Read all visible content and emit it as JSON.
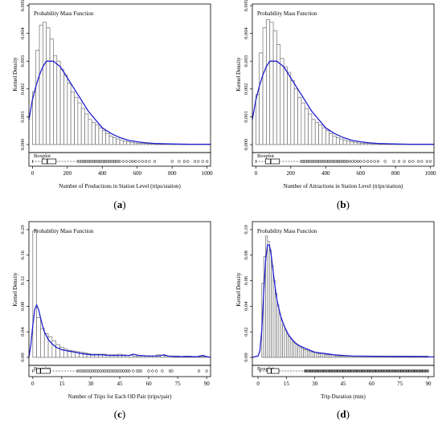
{
  "chart_data": [
    {
      "id": "a",
      "type": "bar",
      "caption_letter": "a",
      "legend_label": "Probability Mass Function",
      "boxplot_label": "Boxplot",
      "xlabel": "Number of Productions in Station Level (trips/station)",
      "ylabel": "Kernel Density",
      "xlim": [
        -20,
        1020
      ],
      "ylim": [
        0,
        0.005
      ],
      "xticks": [
        0,
        200,
        400,
        600,
        800,
        1000
      ],
      "yticks": [
        0.0,
        0.001,
        0.002,
        0.003,
        0.004,
        0.005
      ],
      "ytick_labels": [
        "0.000",
        "0.001",
        "0.002",
        "0.003",
        "0.004",
        "0.005"
      ],
      "bin_width": 20,
      "bin_start": 0,
      "histogram": [
        0.0019,
        0.0034,
        0.0043,
        0.0044,
        0.0042,
        0.0038,
        0.0032,
        0.003,
        0.0027,
        0.0025,
        0.0022,
        0.0019,
        0.0017,
        0.0015,
        0.0013,
        0.0011,
        0.0009,
        0.0008,
        0.0007,
        0.0006,
        0.0005,
        0.0004,
        0.0003,
        0.00025,
        0.0002,
        0.00015,
        0.00012,
        0.0001,
        8e-05,
        6e-05,
        5e-05,
        4e-05,
        4e-05,
        3e-05,
        3e-05,
        2e-05,
        2e-05,
        2e-05,
        1e-05,
        1e-05,
        1e-05,
        1e-05,
        1e-05,
        1e-05,
        1e-05,
        1e-05,
        1e-05,
        1e-05,
        1e-05,
        1e-05,
        1e-05
      ],
      "density_curve": {
        "x": [
          -20,
          0,
          20,
          40,
          60,
          80,
          100,
          120,
          140,
          160,
          180,
          200,
          240,
          280,
          320,
          360,
          400,
          450,
          500,
          550,
          600,
          650,
          700,
          800,
          900,
          1000,
          1020
        ],
        "y": [
          0.0009,
          0.0016,
          0.0021,
          0.0025,
          0.0028,
          0.003,
          0.003,
          0.003,
          0.0029,
          0.0028,
          0.0026,
          0.0024,
          0.002,
          0.0016,
          0.0012,
          0.0009,
          0.0006,
          0.0004,
          0.00025,
          0.00015,
          0.0001,
          6e-05,
          4e-05,
          2e-05,
          1e-05,
          1e-05,
          1e-05
        ]
      },
      "boxplot": {
        "min": 0,
        "q1": 55,
        "median": 85,
        "q3": 135,
        "whisker_hi": 260
      },
      "outliers": [
        270,
        280,
        290,
        300,
        310,
        320,
        330,
        340,
        350,
        360,
        370,
        380,
        390,
        400,
        410,
        420,
        430,
        440,
        450,
        460,
        470,
        480,
        490,
        500,
        520,
        540,
        560,
        575,
        590,
        610,
        630,
        650,
        670,
        700,
        800,
        840,
        870,
        890,
        930,
        950,
        975,
        1000
      ]
    },
    {
      "id": "b",
      "type": "bar",
      "caption_letter": "b",
      "legend_label": "Probability Mass Function",
      "boxplot_label": "Boxplot",
      "xlabel": "Number of Attractions in Station Level (trips/station)",
      "ylabel": "Kernel Density",
      "xlim": [
        -20,
        1020
      ],
      "ylim": [
        0,
        0.005
      ],
      "xticks": [
        0,
        200,
        400,
        600,
        800,
        1000
      ],
      "yticks": [
        0.0,
        0.001,
        0.002,
        0.003,
        0.004,
        0.005
      ],
      "ytick_labels": [
        "0.000",
        "0.001",
        "0.002",
        "0.003",
        "0.004",
        "0.005"
      ],
      "bin_width": 20,
      "bin_start": 0,
      "histogram": [
        0.0018,
        0.0033,
        0.0042,
        0.0045,
        0.0044,
        0.0041,
        0.0036,
        0.0031,
        0.0028,
        0.0026,
        0.0023,
        0.002,
        0.0017,
        0.0015,
        0.0013,
        0.0011,
        0.0009,
        0.0008,
        0.0007,
        0.0006,
        0.0005,
        0.0004,
        0.0003,
        0.00025,
        0.0002,
        0.00015,
        0.00012,
        0.0001,
        8e-05,
        6e-05,
        5e-05,
        4e-05,
        4e-05,
        3e-05,
        3e-05,
        2e-05,
        2e-05,
        2e-05,
        1e-05,
        1e-05,
        1e-05,
        1e-05,
        1e-05,
        1e-05,
        1e-05,
        1e-05,
        1e-05,
        1e-05,
        1e-05,
        1e-05,
        1e-05
      ],
      "density_curve": {
        "x": [
          -20,
          0,
          20,
          40,
          60,
          80,
          100,
          120,
          140,
          160,
          180,
          200,
          240,
          280,
          320,
          360,
          400,
          450,
          500,
          550,
          600,
          650,
          700,
          800,
          900,
          1000,
          1020
        ],
        "y": [
          0.0009,
          0.0016,
          0.0021,
          0.0025,
          0.0028,
          0.003,
          0.003,
          0.003,
          0.0029,
          0.0028,
          0.0026,
          0.0024,
          0.002,
          0.0016,
          0.0012,
          0.0009,
          0.0006,
          0.0004,
          0.00025,
          0.00015,
          0.0001,
          6e-05,
          4e-05,
          2e-05,
          1e-05,
          1e-05,
          1e-05
        ]
      },
      "boxplot": {
        "min": 0,
        "q1": 55,
        "median": 85,
        "q3": 135,
        "whisker_hi": 260
      },
      "outliers": [
        265,
        275,
        285,
        295,
        305,
        315,
        325,
        335,
        345,
        355,
        365,
        375,
        385,
        395,
        405,
        415,
        425,
        435,
        445,
        455,
        465,
        475,
        485,
        495,
        505,
        515,
        525,
        540,
        555,
        570,
        585,
        600,
        620,
        640,
        660,
        680,
        700,
        740,
        790,
        820,
        850,
        880,
        900,
        930,
        950,
        980,
        1000
      ]
    },
    {
      "id": "c",
      "type": "bar",
      "caption_letter": "c",
      "legend_label": "Probability Mass Function",
      "boxplot_label": "Boxplot",
      "xlabel": "Number of Trips for Each OD Pair (trips/pair)",
      "ylabel": "Kernel Density",
      "xlim": [
        -2,
        92
      ],
      "ylim": [
        0,
        0.21
      ],
      "xticks": [
        0,
        15,
        30,
        45,
        60,
        75,
        90
      ],
      "yticks": [
        0.0,
        0.04,
        0.08,
        0.12,
        0.16,
        0.2
      ],
      "ytick_labels": [
        "0.00",
        "0.04",
        "0.08",
        "0.12",
        "0.16",
        "0.20"
      ],
      "bin_width": 2,
      "bin_start": 0,
      "histogram": [
        0.198,
        0.062,
        0.045,
        0.037,
        0.032,
        0.026,
        0.02,
        0.016,
        0.013,
        0.011,
        0.01,
        0.009,
        0.008,
        0.007,
        0.006,
        0.005,
        0.005,
        0.005,
        0.005,
        0.004,
        0.004,
        0.004,
        0.005,
        0.004,
        0.003,
        0.003,
        0.002,
        0.002,
        0.002,
        0.002,
        0.002,
        0.002,
        0.004,
        0.003,
        0.002,
        0.002,
        0.002,
        0.002,
        0.001,
        0.002,
        0.002,
        0.001,
        0.001,
        0.001,
        0.001
      ],
      "density_curve": {
        "x": [
          -2,
          -1,
          0,
          1,
          2,
          3,
          4,
          5,
          6,
          8,
          10,
          12,
          15,
          18,
          20,
          25,
          30,
          35,
          40,
          45,
          50,
          52,
          55,
          60,
          65,
          68,
          70,
          75,
          80,
          85,
          88,
          90,
          92
        ],
        "y": [
          0.0,
          0.02,
          0.05,
          0.075,
          0.082,
          0.075,
          0.062,
          0.05,
          0.04,
          0.028,
          0.021,
          0.016,
          0.012,
          0.01,
          0.009,
          0.006,
          0.004,
          0.004,
          0.003,
          0.003,
          0.003,
          0.005,
          0.003,
          0.002,
          0.002,
          0.004,
          0.002,
          0.001,
          0.001,
          0.001,
          0.003,
          0.001,
          0.0
        ]
      },
      "boxplot": {
        "min": 0,
        "q1": 2,
        "median": 4,
        "q3": 9,
        "whisker_hi": 23
      },
      "outliers": [
        24,
        25,
        26,
        27,
        28,
        29,
        30,
        31,
        32,
        33,
        34,
        35,
        36,
        37,
        38,
        39,
        40,
        41,
        42,
        43,
        44,
        45,
        46,
        47,
        48,
        49,
        50,
        52,
        54,
        55,
        56,
        60,
        62,
        64,
        67,
        71,
        72,
        86,
        90
      ]
    },
    {
      "id": "d",
      "type": "bar",
      "caption_letter": "d",
      "legend_label": "Probability Mass Function",
      "boxplot_label": "Boxplot",
      "xlabel": "Trip Duration (min)",
      "ylabel": "Kernel Density",
      "xlim": [
        -3,
        93
      ],
      "ylim": [
        0,
        0.105
      ],
      "xticks": [
        0,
        15,
        30,
        45,
        60,
        75,
        90
      ],
      "yticks": [
        0.0,
        0.02,
        0.04,
        0.06,
        0.08,
        0.1
      ],
      "ytick_labels": [
        "0.00",
        "0.02",
        "0.04",
        "0.06",
        "0.08",
        "0.10"
      ],
      "bin_width": 1,
      "bin_start": 2,
      "histogram": [
        0.058,
        0.079,
        0.095,
        0.091,
        0.084,
        0.072,
        0.06,
        0.05,
        0.041,
        0.034,
        0.029,
        0.025,
        0.021,
        0.018,
        0.016,
        0.014,
        0.012,
        0.011,
        0.01,
        0.009,
        0.008,
        0.007,
        0.006,
        0.006,
        0.005,
        0.005,
        0.004,
        0.004,
        0.004,
        0.003,
        0.003,
        0.003,
        0.003,
        0.002,
        0.002,
        0.002,
        0.002,
        0.002,
        0.002,
        0.001,
        0.001,
        0.001,
        0.001,
        0.001,
        0.001,
        0.001,
        0.001,
        0.001,
        0.001,
        0.001,
        0.001,
        0.001,
        0.001,
        0.001,
        0.001,
        0.001,
        0.001,
        0.001,
        0.001,
        0.001,
        0.001,
        0.001,
        0.001,
        0.001,
        0.001,
        0.001,
        0.001,
        0.001,
        0.001,
        0.001,
        0.001,
        0.001,
        0.001,
        0.001,
        0.001,
        0.001,
        0.001,
        0.001,
        0.001,
        0.001,
        0.001,
        0.001,
        0.001,
        0.001,
        0.001,
        0.001,
        0.001,
        0.001
      ],
      "density_curve": {
        "x": [
          -3,
          0,
          1,
          2,
          3,
          4,
          5,
          6,
          7,
          8,
          9,
          10,
          12,
          14,
          16,
          18,
          20,
          22,
          25,
          30,
          35,
          40,
          45,
          50,
          60,
          70,
          80,
          90,
          93
        ],
        "y": [
          0.0,
          0.001,
          0.005,
          0.022,
          0.05,
          0.076,
          0.088,
          0.088,
          0.08,
          0.067,
          0.055,
          0.045,
          0.032,
          0.024,
          0.018,
          0.014,
          0.011,
          0.009,
          0.007,
          0.004,
          0.003,
          0.002,
          0.0015,
          0.001,
          0.0008,
          0.0006,
          0.0005,
          0.0004,
          0.0003
        ]
      },
      "boxplot": {
        "min": 1,
        "q1": 5,
        "median": 7,
        "q3": 11,
        "whisker_hi": 25
      },
      "outliers_from": 25,
      "outliers_to": 90
    }
  ],
  "colors": {
    "bar_stroke": "#6e6e6e",
    "curve": "#1f1fd0",
    "axis": "#000000"
  }
}
